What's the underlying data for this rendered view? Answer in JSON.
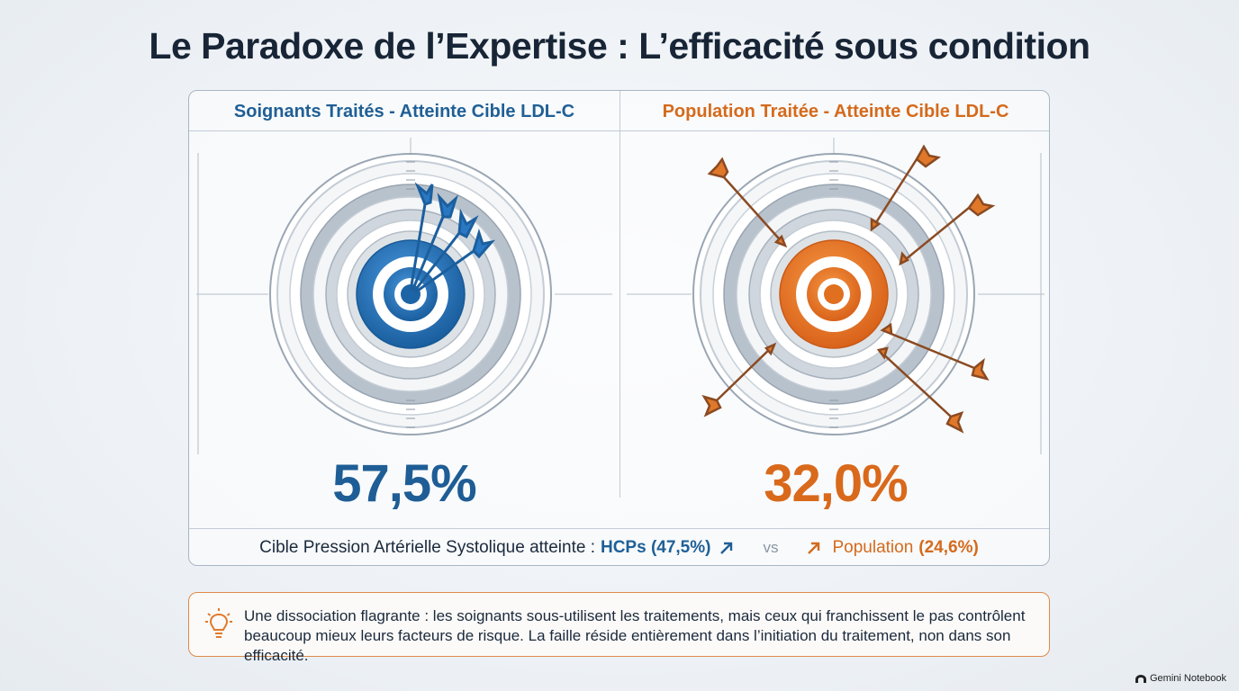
{
  "title": "Le Paradoxe de l’Expertise : L’efficacité sous condition",
  "left": {
    "heading": "Soignants Traités - Atteinte Cible LDL-C",
    "value": "57,5%",
    "accent": "#1f6fb5"
  },
  "right": {
    "heading": "Population Traitée - Atteinte Cible LDL-C",
    "value": "32,0%",
    "accent": "#e0701f"
  },
  "comparison": {
    "label": "Cible Pression Artérielle Systolique atteinte :",
    "hcp": "HCPs (47,5%)",
    "vs": "vs",
    "population_label": "Population",
    "population_value": "(24,6%)"
  },
  "note": {
    "icon": "lightbulb-icon",
    "text": "Une dissociation flagrante : les soignants sous-utilisent les traitements, mais ceux qui franchissent le pas contrôlent beaucoup mieux leurs facteurs de risque. La faille réside entièrement dans l’initiation du traitement, non dans son efficacité."
  },
  "brand": "Gemini Notebook"
}
